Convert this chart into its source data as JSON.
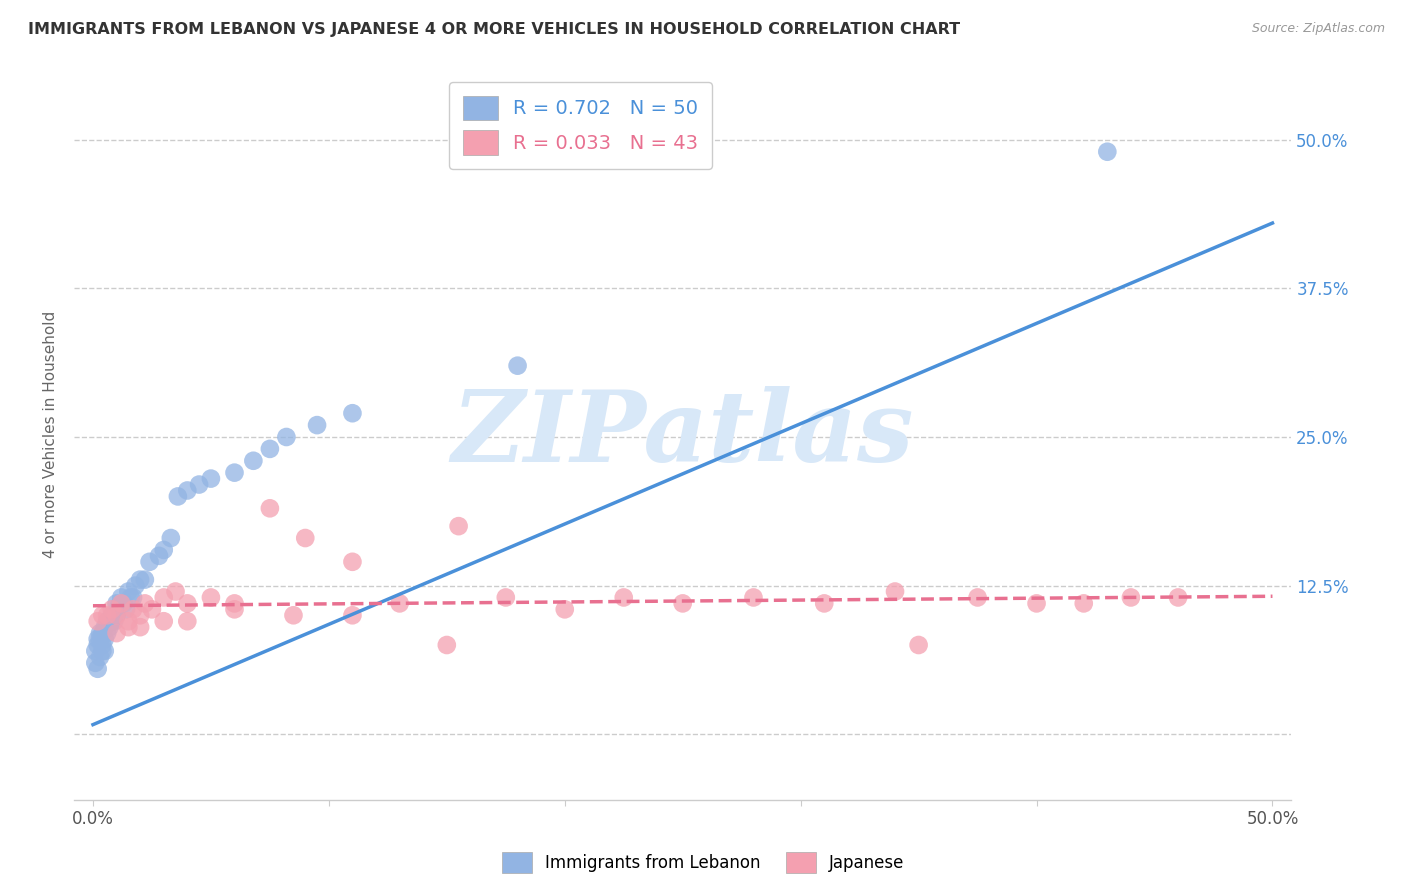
{
  "title": "IMMIGRANTS FROM LEBANON VS JAPANESE 4 OR MORE VEHICLES IN HOUSEHOLD CORRELATION CHART",
  "source": "Source: ZipAtlas.com",
  "ylabel": "4 or more Vehicles in Household",
  "legend_label1": "Immigrants from Lebanon",
  "legend_label2": "Japanese",
  "R1": 0.702,
  "N1": 50,
  "R2": 0.033,
  "N2": 43,
  "color1": "#92B4E3",
  "color2": "#F4A0B0",
  "line1_color": "#4A90D9",
  "line2_color": "#E87090",
  "watermark_text": "ZIPatlas",
  "watermark_color": "#D8E8F8",
  "title_color": "#333333",
  "source_color": "#999999",
  "grid_color": "#CCCCCC",
  "right_tick_color": "#4A90D9",
  "blue_x": [
    0.001,
    0.001,
    0.002,
    0.002,
    0.002,
    0.003,
    0.003,
    0.003,
    0.004,
    0.004,
    0.004,
    0.005,
    0.005,
    0.005,
    0.006,
    0.006,
    0.007,
    0.007,
    0.008,
    0.008,
    0.009,
    0.009,
    0.01,
    0.01,
    0.011,
    0.012,
    0.013,
    0.014,
    0.015,
    0.016,
    0.017,
    0.018,
    0.02,
    0.022,
    0.024,
    0.028,
    0.03,
    0.033,
    0.036,
    0.04,
    0.045,
    0.05,
    0.06,
    0.068,
    0.075,
    0.082,
    0.095,
    0.11,
    0.18,
    0.43
  ],
  "blue_y": [
    0.06,
    0.07,
    0.055,
    0.075,
    0.08,
    0.065,
    0.08,
    0.085,
    0.07,
    0.085,
    0.075,
    0.09,
    0.08,
    0.07,
    0.095,
    0.085,
    0.09,
    0.095,
    0.095,
    0.1,
    0.1,
    0.095,
    0.1,
    0.11,
    0.108,
    0.115,
    0.11,
    0.105,
    0.12,
    0.115,
    0.115,
    0.125,
    0.13,
    0.13,
    0.145,
    0.15,
    0.155,
    0.165,
    0.2,
    0.205,
    0.21,
    0.215,
    0.22,
    0.23,
    0.24,
    0.25,
    0.26,
    0.27,
    0.31,
    0.49
  ],
  "pink_x": [
    0.002,
    0.004,
    0.006,
    0.008,
    0.01,
    0.012,
    0.015,
    0.017,
    0.02,
    0.022,
    0.025,
    0.03,
    0.035,
    0.04,
    0.05,
    0.06,
    0.075,
    0.09,
    0.11,
    0.13,
    0.155,
    0.175,
    0.2,
    0.225,
    0.25,
    0.28,
    0.31,
    0.34,
    0.375,
    0.4,
    0.42,
    0.44,
    0.46,
    0.01,
    0.015,
    0.02,
    0.03,
    0.04,
    0.06,
    0.085,
    0.11,
    0.15,
    0.35
  ],
  "pink_y": [
    0.095,
    0.1,
    0.1,
    0.105,
    0.1,
    0.11,
    0.095,
    0.105,
    0.1,
    0.11,
    0.105,
    0.115,
    0.12,
    0.11,
    0.115,
    0.11,
    0.19,
    0.165,
    0.145,
    0.11,
    0.175,
    0.115,
    0.105,
    0.115,
    0.11,
    0.115,
    0.11,
    0.12,
    0.115,
    0.11,
    0.11,
    0.115,
    0.115,
    0.085,
    0.09,
    0.09,
    0.095,
    0.095,
    0.105,
    0.1,
    0.1,
    0.075,
    0.075
  ],
  "blue_line_x0": 0.0,
  "blue_line_y0": 0.008,
  "blue_line_x1": 0.5,
  "blue_line_y1": 0.43,
  "pink_line_x0": 0.0,
  "pink_line_y0": 0.108,
  "pink_line_x1": 0.5,
  "pink_line_y1": 0.116,
  "xlim_min": -0.008,
  "xlim_max": 0.508,
  "ylim_min": -0.055,
  "ylim_max": 0.56,
  "yticks": [
    0.0,
    0.125,
    0.25,
    0.375,
    0.5
  ],
  "ytick_right_labels": [
    "",
    "12.5%",
    "25.0%",
    "37.5%",
    "50.0%"
  ]
}
